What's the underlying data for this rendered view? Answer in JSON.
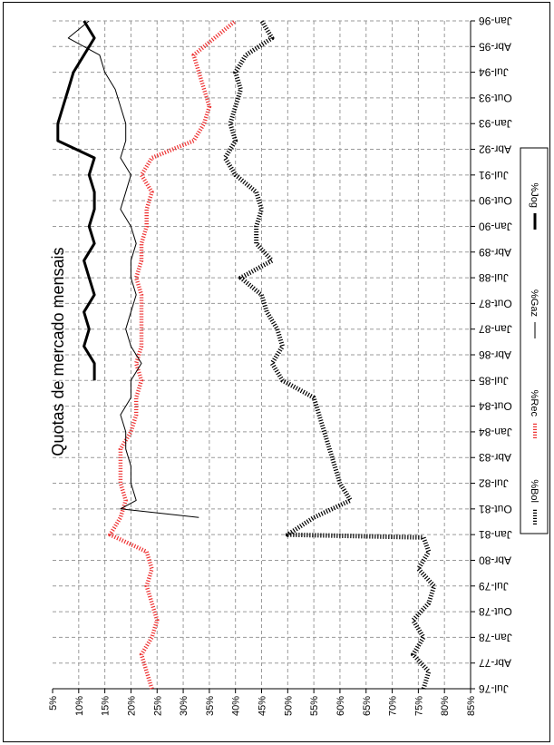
{
  "chart_data": {
    "type": "line",
    "title": "Quotas de mercado mensais",
    "orientation": "rotated 90 degrees clockwise",
    "x_tick_labels": [
      "Jul-76",
      "Abr-77",
      "Jan-78",
      "Out-78",
      "Jul-79",
      "Abr-80",
      "Jan-81",
      "Out-81",
      "Jul-82",
      "Abr-83",
      "Jan-84",
      "Out-84",
      "Jul-85",
      "Abr-86",
      "Jan-87",
      "Out-87",
      "Jul-88",
      "Abr-89",
      "Jan-90",
      "Out-90",
      "Jul-91",
      "Abr-92",
      "Jan-93",
      "Out-93",
      "Jul-94",
      "Abr-95",
      "Jan-96"
    ],
    "y_tick_labels": [
      "5%",
      "10%",
      "15%",
      "20%",
      "25%",
      "30%",
      "35%",
      "40%",
      "45%",
      "50%",
      "55%",
      "60%",
      "65%",
      "70%",
      "75%",
      "80%",
      "85%"
    ],
    "ylim": [
      5,
      85
    ],
    "grid": true,
    "legend_position": "right",
    "series": [
      {
        "name": "%Bol",
        "color": "#000000",
        "x": [
          "Jul-76",
          "Jan-77",
          "Jul-77",
          "Jan-78",
          "Jul-78",
          "Jan-79",
          "Jul-79",
          "Jan-80",
          "Jul-80",
          "Dez-80",
          "Jan-81",
          "Jul-81",
          "Jan-82",
          "Jul-82",
          "Jan-83",
          "Jul-83",
          "Jan-84",
          "Jul-84",
          "Jan-85",
          "Jul-85",
          "Jan-86",
          "Jul-86",
          "Jan-87",
          "Jul-87",
          "Jan-88",
          "Jul-88",
          "Jan-89",
          "Jul-89",
          "Jan-90",
          "Jul-90",
          "Jan-91",
          "Jul-91",
          "Jan-92",
          "Jul-92",
          "Jan-93",
          "Jul-93",
          "Jan-94",
          "Jul-94",
          "Jan-95",
          "Jul-95",
          "Jan-96"
        ],
        "values": [
          76,
          77,
          74,
          76,
          74,
          77,
          78,
          75,
          77,
          76,
          50,
          55,
          62,
          60,
          59,
          58,
          57,
          56,
          55,
          49,
          47,
          49,
          48,
          46,
          45,
          41,
          47,
          44,
          44,
          45,
          44,
          40,
          38,
          40,
          39,
          40,
          41,
          40,
          42,
          47,
          45
        ]
      },
      {
        "name": "%Rec",
        "color": "#ee3333",
        "x": [
          "Jul-76",
          "Jan-77",
          "Jul-77",
          "Jan-78",
          "Jul-78",
          "Jan-79",
          "Jul-79",
          "Jan-80",
          "Jul-80",
          "Jan-81",
          "Jul-81",
          "Jan-82",
          "Jul-82",
          "Jan-83",
          "Jul-83",
          "Jan-84",
          "Jul-84",
          "Jan-85",
          "Jul-85",
          "Jan-86",
          "Jul-86",
          "Jan-87",
          "Jul-87",
          "Jan-88",
          "Jul-88",
          "Jan-89",
          "Jul-89",
          "Jan-90",
          "Jul-90",
          "Jan-91",
          "Jul-91",
          "Jan-92",
          "Jul-92",
          "Jan-93",
          "Jul-93",
          "Jan-94",
          "Jul-94",
          "Jan-95",
          "Jul-95",
          "Jan-96"
        ],
        "values": [
          24,
          23,
          22,
          24,
          25,
          24,
          23,
          24,
          23,
          16,
          18,
          19,
          18,
          18,
          18,
          20,
          21,
          21,
          22,
          21,
          22,
          22,
          22,
          22,
          21,
          22,
          22,
          23,
          23,
          24,
          22,
          24,
          32,
          34,
          35,
          34,
          33,
          32,
          36,
          40
        ]
      },
      {
        "name": "%Gaz",
        "color": "#000000",
        "x": [
          "Jul-81",
          "Out-81",
          "Jan-82",
          "Jul-82",
          "Jan-83",
          "Jul-83",
          "Jan-84",
          "Jul-84",
          "Jan-85",
          "Jul-85",
          "Jan-86",
          "Jul-86",
          "Jan-87",
          "Jul-87",
          "Jan-88",
          "Jul-88",
          "Jan-89",
          "Jul-89",
          "Jan-90",
          "Jul-90",
          "Jan-91",
          "Jul-91",
          "Jan-92",
          "Jul-92",
          "Jan-93",
          "Jul-93",
          "Jan-94",
          "Jul-94",
          "Jan-95",
          "Jul-95",
          "Jan-96"
        ],
        "values": [
          33,
          18,
          21,
          20,
          20,
          19,
          19,
          18,
          20,
          20,
          22,
          20,
          19,
          20,
          21,
          20,
          20,
          21,
          20,
          18,
          19,
          20,
          18,
          19,
          19,
          18,
          17,
          15,
          14,
          8,
          12
        ]
      },
      {
        "name": "%Jog",
        "color": "#000000",
        "x": [
          "Jul-85",
          "Jan-86",
          "Jul-86",
          "Jan-87",
          "Jul-87",
          "Jan-88",
          "Jul-88",
          "Jan-89",
          "Jul-89",
          "Jan-90",
          "Jul-90",
          "Jan-91",
          "Jul-91",
          "Jan-92",
          "Jul-92",
          "Jan-93",
          "Jul-93",
          "Jan-94",
          "Jul-94",
          "Jan-95",
          "Jul-95",
          "Jan-96"
        ],
        "values": [
          13,
          13,
          11,
          12,
          11,
          13,
          12,
          11,
          13,
          12,
          13,
          13,
          12,
          13,
          6,
          6,
          7,
          8,
          9,
          11,
          13,
          11
        ]
      }
    ]
  }
}
